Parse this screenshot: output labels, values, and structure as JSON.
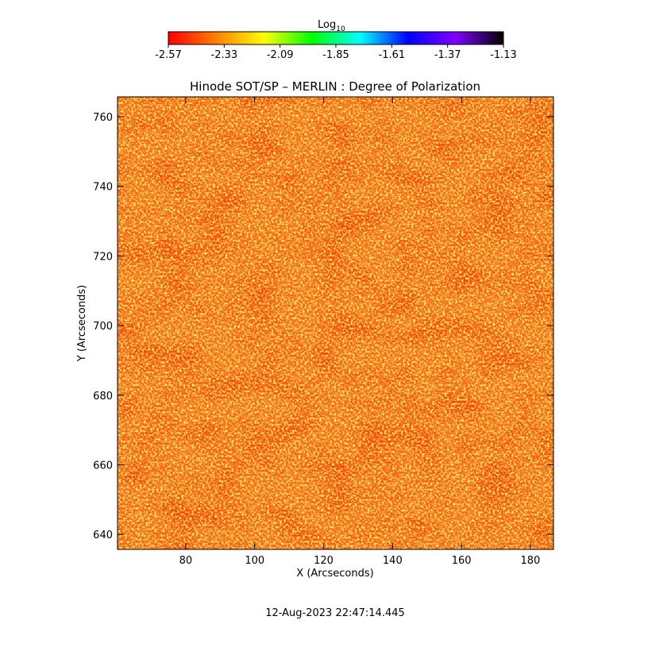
{
  "chart_data": {
    "type": "image",
    "title": "Hinode SOT/SP – MERLIN : Degree of Polarization",
    "x_label": "X (Arcseconds)",
    "y_label": "Y (Arcseconds)",
    "xlim": [
      60.2,
      186.7
    ],
    "ylim": [
      635.7,
      765.7
    ],
    "xticks": [
      80,
      100,
      120,
      140,
      160,
      180
    ],
    "yticks": [
      640,
      660,
      680,
      700,
      720,
      740,
      760
    ],
    "colorbar_label": "Log",
    "colorbar_label_sub": "10",
    "colorbar_lim": [
      -2.57,
      -1.13
    ],
    "colorbar_ticks": [
      -2.57,
      -2.33,
      -2.09,
      -1.85,
      -1.61,
      -1.37,
      -1.13
    ],
    "colormap": [
      "#ff0000",
      "#ff8000",
      "#ffff00",
      "#00ff00",
      "#00ffff",
      "#0000ff",
      "#8000ff",
      "#000000"
    ],
    "timestamp": "12-Aug-2023 22:47:14.445"
  }
}
